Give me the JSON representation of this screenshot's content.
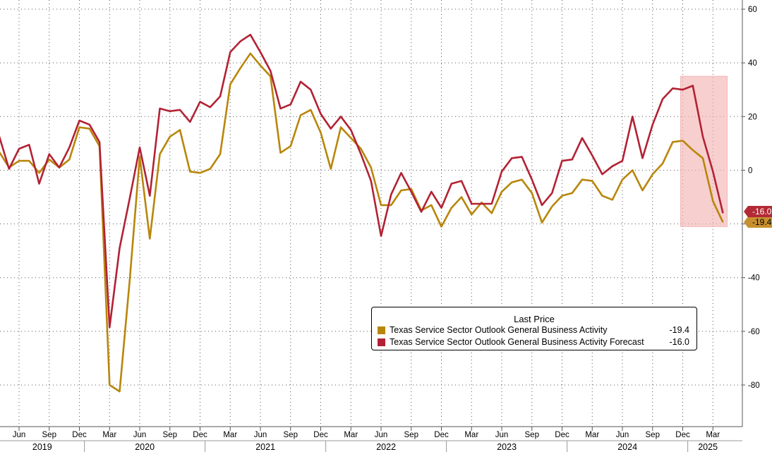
{
  "chart_data": {
    "type": "line",
    "x": [
      "2019-04",
      "2019-05",
      "2019-06",
      "2019-07",
      "2019-08",
      "2019-09",
      "2019-10",
      "2019-11",
      "2019-12",
      "2020-01",
      "2020-02",
      "2020-03",
      "2020-04",
      "2020-05",
      "2020-06",
      "2020-07",
      "2020-08",
      "2020-09",
      "2020-10",
      "2020-11",
      "2020-12",
      "2021-01",
      "2021-02",
      "2021-03",
      "2021-04",
      "2021-05",
      "2021-06",
      "2021-07",
      "2021-08",
      "2021-09",
      "2021-10",
      "2021-11",
      "2021-12",
      "2022-01",
      "2022-02",
      "2022-03",
      "2022-04",
      "2022-05",
      "2022-06",
      "2022-07",
      "2022-08",
      "2022-09",
      "2022-10",
      "2022-11",
      "2022-12",
      "2023-01",
      "2023-02",
      "2023-03",
      "2023-04",
      "2023-05",
      "2023-06",
      "2023-07",
      "2023-08",
      "2023-09",
      "2023-10",
      "2023-11",
      "2023-12",
      "2024-01",
      "2024-02",
      "2024-03",
      "2024-04",
      "2024-05",
      "2024-06",
      "2024-07",
      "2024-08",
      "2024-09",
      "2024-10",
      "2024-11",
      "2024-12",
      "2025-01",
      "2025-02",
      "2025-03",
      "2025-04"
    ],
    "series": [
      {
        "name": "Texas Service Sector Outlook General Business Activity",
        "color": "#b8860b",
        "last": "-19.4",
        "values": [
          7.0,
          1.0,
          3.5,
          3.5,
          -1.0,
          4.0,
          1.0,
          4.0,
          16.0,
          15.5,
          9.0,
          -80.0,
          -82.4,
          -41.0,
          5.0,
          -25.5,
          6.0,
          12.5,
          15.0,
          -0.5,
          -1.0,
          0.5,
          6.0,
          32.0,
          38.0,
          43.5,
          39.0,
          35.0,
          6.5,
          9.0,
          20.5,
          22.5,
          14.0,
          0.5,
          16.0,
          12.0,
          8.0,
          1.0,
          -13.0,
          -13.0,
          -7.5,
          -7.0,
          -15.0,
          -13.0,
          -21.0,
          -14.0,
          -10.0,
          -16.5,
          -12.0,
          -16.0,
          -8.0,
          -4.5,
          -3.5,
          -8.5,
          -19.5,
          -13.5,
          -9.5,
          -8.5,
          -3.5,
          -4.0,
          -9.5,
          -11.0,
          -3.5,
          0.0,
          -7.5,
          -1.5,
          2.5,
          10.5,
          11.0,
          7.5,
          4.5,
          -11.5,
          -19.4
        ]
      },
      {
        "name": "Texas Service Sector Outlook General Business Activity Forecast",
        "color": "#b22234",
        "last": "-16.0",
        "values": [
          13.0,
          0.5,
          8.0,
          9.5,
          -5.0,
          6.0,
          1.0,
          8.5,
          18.5,
          17.0,
          10.5,
          -58.5,
          -29.0,
          -10.5,
          8.5,
          -9.5,
          23.0,
          22.0,
          22.5,
          18.0,
          25.5,
          23.5,
          27.5,
          44.0,
          48.0,
          50.5,
          44.0,
          37.0,
          23.0,
          24.5,
          33.0,
          30.0,
          21.0,
          15.5,
          20.0,
          15.0,
          6.0,
          -4.0,
          -24.5,
          -9.0,
          -1.0,
          -8.0,
          -15.5,
          -8.0,
          -14.0,
          -5.0,
          -4.0,
          -12.5,
          -12.5,
          -12.5,
          -0.5,
          4.5,
          5.0,
          -3.5,
          -13.0,
          -8.5,
          3.5,
          4.0,
          12.0,
          5.5,
          -1.5,
          1.5,
          3.5,
          20.0,
          4.5,
          17.0,
          26.5,
          30.5,
          30.0,
          31.5,
          12.5,
          -0.5,
          -16.0
        ]
      }
    ],
    "legend": {
      "header": "Last Price",
      "entries": [
        {
          "name": "Texas Service Sector Outlook General Business Activity",
          "value": "-19.4",
          "color": "#b8860b"
        },
        {
          "name": "Texas Service Sector Outlook General Business Activity Forecast",
          "value": "-16.0",
          "color": "#b22234"
        }
      ]
    },
    "y_ticks": [
      60,
      40,
      20,
      0,
      -20,
      -40,
      -60,
      -80
    ],
    "y_tick_labels": [
      "60",
      "40",
      "20",
      "0",
      "",
      "-40",
      "-60",
      "-80"
    ],
    "ylim": [
      -93,
      62
    ],
    "month_ticks": [
      "Jun",
      "Sep",
      "Dec",
      "Mar",
      "Jun",
      "Sep",
      "Dec",
      "Mar",
      "Jun",
      "Sep",
      "Dec",
      "Mar",
      "Jun",
      "Sep",
      "Dec",
      "Mar",
      "Jun",
      "Sep",
      "Dec",
      "Mar",
      "Jun",
      "Sep",
      "Dec",
      "Mar"
    ],
    "year_labels": [
      "2019",
      "2020",
      "2021",
      "2022",
      "2023",
      "2024",
      "2025"
    ],
    "highlight": {
      "from": "2024-12",
      "to": "2025-04",
      "ymin": -21,
      "ymax": 35,
      "color": "#f4b6b6"
    },
    "grid": true,
    "legend_position": "bottom-right",
    "y_axis_side": "right"
  }
}
